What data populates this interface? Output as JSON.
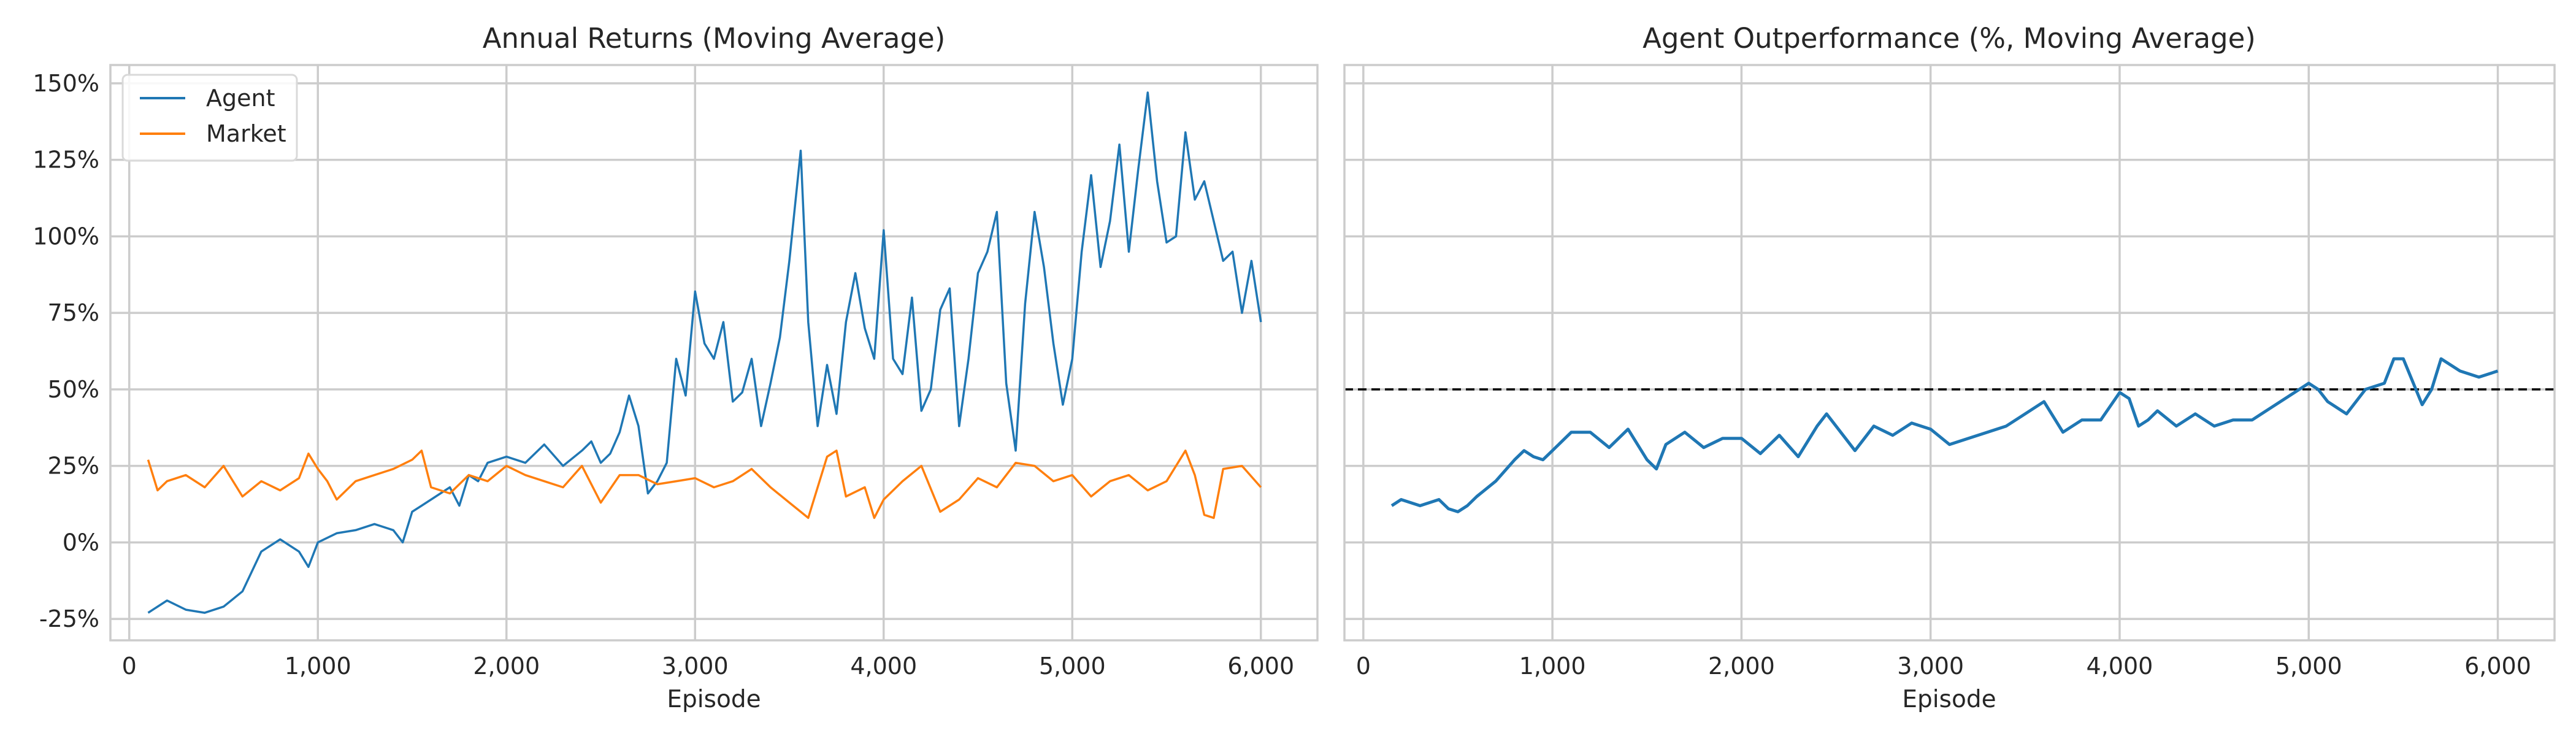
{
  "chart_data": [
    {
      "type": "line",
      "title": "Annual Returns (Moving Average)",
      "xlabel": "Episode",
      "ylabel": "",
      "xlim": [
        -100,
        6300
      ],
      "ylim": [
        -0.32,
        1.56
      ],
      "x_ticks": [
        0,
        1000,
        2000,
        3000,
        4000,
        5000,
        6000
      ],
      "x_tick_labels": [
        "0",
        "1,000",
        "2,000",
        "3,000",
        "4,000",
        "5,000",
        "6,000"
      ],
      "y_ticks": [
        -0.25,
        0,
        0.25,
        0.5,
        0.75,
        1.0,
        1.25,
        1.5
      ],
      "y_tick_labels": [
        "-25%",
        "0%",
        "25%",
        "50%",
        "75%",
        "100%",
        "125%",
        "150%"
      ],
      "grid": true,
      "legend_position": "top-left",
      "series": [
        {
          "name": "Agent",
          "color": "#1f77b4",
          "x": [
            100,
            200,
            300,
            400,
            500,
            600,
            700,
            800,
            900,
            950,
            1000,
            1100,
            1200,
            1300,
            1400,
            1450,
            1500,
            1550,
            1600,
            1700,
            1750,
            1800,
            1850,
            1900,
            2000,
            2100,
            2200,
            2300,
            2400,
            2450,
            2500,
            2550,
            2600,
            2650,
            2700,
            2750,
            2800,
            2850,
            2900,
            2950,
            3000,
            3050,
            3100,
            3150,
            3200,
            3250,
            3300,
            3350,
            3400,
            3450,
            3500,
            3530,
            3560,
            3600,
            3650,
            3700,
            3750,
            3800,
            3850,
            3900,
            3950,
            4000,
            4050,
            4100,
            4150,
            4200,
            4250,
            4300,
            4350,
            4400,
            4450,
            4500,
            4550,
            4600,
            4650,
            4700,
            4750,
            4800,
            4850,
            4900,
            4950,
            5000,
            5050,
            5100,
            5150,
            5200,
            5250,
            5300,
            5350,
            5400,
            5450,
            5500,
            5550,
            5600,
            5650,
            5700,
            5750,
            5800,
            5850,
            5900,
            5950,
            6000
          ],
          "values": [
            -0.23,
            -0.19,
            -0.22,
            -0.23,
            -0.21,
            -0.16,
            -0.03,
            0.01,
            -0.03,
            -0.08,
            0.0,
            0.03,
            0.04,
            0.06,
            0.04,
            0.0,
            0.1,
            0.12,
            0.14,
            0.18,
            0.12,
            0.22,
            0.2,
            0.26,
            0.28,
            0.26,
            0.32,
            0.25,
            0.3,
            0.33,
            0.26,
            0.29,
            0.36,
            0.48,
            0.38,
            0.16,
            0.2,
            0.26,
            0.6,
            0.48,
            0.82,
            0.65,
            0.6,
            0.72,
            0.46,
            0.49,
            0.6,
            0.38,
            0.52,
            0.67,
            0.92,
            1.1,
            1.28,
            0.72,
            0.38,
            0.58,
            0.42,
            0.72,
            0.88,
            0.7,
            0.6,
            1.02,
            0.6,
            0.55,
            0.8,
            0.43,
            0.5,
            0.76,
            0.83,
            0.38,
            0.6,
            0.88,
            0.95,
            1.08,
            0.52,
            0.3,
            0.78,
            1.08,
            0.9,
            0.65,
            0.45,
            0.6,
            0.95,
            1.2,
            0.9,
            1.05,
            1.3,
            0.95,
            1.22,
            1.47,
            1.18,
            0.98,
            1.0,
            1.34,
            1.12,
            1.18,
            1.05,
            0.92,
            0.95,
            0.75,
            0.92,
            0.72
          ]
        },
        {
          "name": "Market",
          "color": "#ff7f0e",
          "x": [
            100,
            150,
            200,
            300,
            400,
            500,
            600,
            700,
            800,
            900,
            950,
            1000,
            1050,
            1100,
            1200,
            1300,
            1400,
            1500,
            1550,
            1600,
            1700,
            1800,
            1900,
            2000,
            2100,
            2200,
            2300,
            2400,
            2500,
            2600,
            2700,
            2800,
            2900,
            3000,
            3100,
            3200,
            3300,
            3400,
            3500,
            3600,
            3700,
            3750,
            3800,
            3900,
            3950,
            4000,
            4100,
            4200,
            4300,
            4400,
            4500,
            4600,
            4700,
            4800,
            4900,
            5000,
            5100,
            5200,
            5300,
            5400,
            5500,
            5600,
            5650,
            5700,
            5750,
            5800,
            5900,
            6000
          ],
          "values": [
            0.27,
            0.17,
            0.2,
            0.22,
            0.18,
            0.25,
            0.15,
            0.2,
            0.17,
            0.21,
            0.29,
            0.24,
            0.2,
            0.14,
            0.2,
            0.22,
            0.24,
            0.27,
            0.3,
            0.18,
            0.16,
            0.22,
            0.2,
            0.25,
            0.22,
            0.2,
            0.18,
            0.25,
            0.13,
            0.22,
            0.22,
            0.19,
            0.2,
            0.21,
            0.18,
            0.2,
            0.24,
            0.18,
            0.13,
            0.08,
            0.28,
            0.3,
            0.15,
            0.18,
            0.08,
            0.14,
            0.2,
            0.25,
            0.1,
            0.14,
            0.21,
            0.18,
            0.26,
            0.25,
            0.2,
            0.22,
            0.15,
            0.2,
            0.22,
            0.17,
            0.2,
            0.3,
            0.22,
            0.09,
            0.08,
            0.24,
            0.25,
            0.18
          ]
        }
      ]
    },
    {
      "type": "line",
      "title": "Agent Outperformance (%, Moving Average)",
      "xlabel": "Episode",
      "ylabel": "",
      "xlim": [
        -100,
        6300
      ],
      "ylim": [
        -0.32,
        1.56
      ],
      "x_ticks": [
        0,
        1000,
        2000,
        3000,
        4000,
        5000,
        6000
      ],
      "x_tick_labels": [
        "0",
        "1,000",
        "2,000",
        "3,000",
        "4,000",
        "5,000",
        "6,000"
      ],
      "grid": true,
      "reference_line": {
        "y": 0.5,
        "style": "dashed",
        "color": "#000000"
      },
      "series": [
        {
          "color": "#1f77b4",
          "x": [
            150,
            200,
            300,
            400,
            450,
            500,
            550,
            600,
            700,
            800,
            850,
            900,
            950,
            1000,
            1050,
            1100,
            1200,
            1300,
            1350,
            1400,
            1500,
            1550,
            1600,
            1700,
            1800,
            1900,
            2000,
            2100,
            2200,
            2300,
            2400,
            2450,
            2500,
            2600,
            2700,
            2800,
            2900,
            3000,
            3100,
            3200,
            3300,
            3400,
            3500,
            3600,
            3700,
            3800,
            3900,
            4000,
            4050,
            4100,
            4150,
            4200,
            4300,
            4400,
            4500,
            4600,
            4700,
            4800,
            4900,
            5000,
            5050,
            5100,
            5200,
            5300,
            5400,
            5450,
            5500,
            5600,
            5650,
            5700,
            5800,
            5900,
            6000
          ],
          "values": [
            0.12,
            0.14,
            0.12,
            0.14,
            0.11,
            0.1,
            0.12,
            0.15,
            0.2,
            0.27,
            0.3,
            0.28,
            0.27,
            0.3,
            0.33,
            0.36,
            0.36,
            0.31,
            0.34,
            0.37,
            0.27,
            0.24,
            0.32,
            0.36,
            0.31,
            0.34,
            0.34,
            0.29,
            0.35,
            0.28,
            0.38,
            0.42,
            0.38,
            0.3,
            0.38,
            0.35,
            0.39,
            0.37,
            0.32,
            0.34,
            0.36,
            0.38,
            0.42,
            0.46,
            0.36,
            0.4,
            0.4,
            0.49,
            0.47,
            0.38,
            0.4,
            0.43,
            0.38,
            0.42,
            0.38,
            0.4,
            0.4,
            0.44,
            0.48,
            0.52,
            0.5,
            0.46,
            0.42,
            0.5,
            0.52,
            0.6,
            0.6,
            0.45,
            0.5,
            0.6,
            0.56,
            0.54,
            0.56
          ]
        }
      ]
    }
  ]
}
